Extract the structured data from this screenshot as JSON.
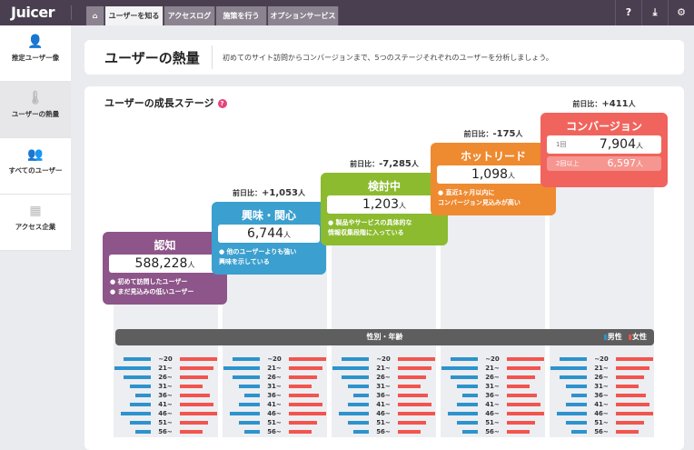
{
  "app": {
    "logo": "Juicer"
  },
  "nav": {
    "tabs": [
      {
        "label": "home-icon",
        "icon": "⌂"
      },
      {
        "label": "ユーザーを知る"
      },
      {
        "label": "アクセスログ"
      },
      {
        "label": "施策を行う"
      },
      {
        "label": "オプションサービス"
      }
    ],
    "active": 1
  },
  "toolbar": {
    "help": "?",
    "download": "⤓",
    "settings": "⚙"
  },
  "sidebar": {
    "items": [
      {
        "label": "推定ユーザー像",
        "icon": "👤"
      },
      {
        "label": "ユーザーの熱量",
        "icon": "🌡"
      },
      {
        "label": "すべてのユーザー",
        "icon": "👥"
      },
      {
        "label": "アクセス企業",
        "icon": "▦"
      }
    ],
    "active": 1
  },
  "header": {
    "title": "ユーザーの熱量",
    "description": "初めてのサイト訪問からコンバージョンまで、5つのステージそれぞれのユーザーを分析しましょう。"
  },
  "main": {
    "title": "ユーザーの成長ステージ",
    "help": "?"
  },
  "stages": [
    {
      "name": "認知",
      "value": "588,228",
      "unit": "人",
      "notes": [
        "● 初めて訪問したユーザー",
        "● まだ見込みの低いユーザー"
      ],
      "color": "#8d5589",
      "diff": null
    },
    {
      "name": "興味・関心",
      "value": "6,744",
      "unit": "人",
      "notes": [
        "● 他のユーザーよりも強い",
        "興味を示している"
      ],
      "color": "#3b9fcf",
      "diff_label": "前日比：",
      "diff": "+1,053",
      "diff_unit": "人"
    },
    {
      "name": "検討中",
      "value": "1,203",
      "unit": "人",
      "notes": [
        "● 製品やサービスの具体的な",
        "情報収集段階に入っている"
      ],
      "color": "#8cbb2f",
      "diff_label": "前日比：",
      "diff": "-7,285",
      "diff_unit": "人"
    },
    {
      "name": "ホットリード",
      "value": "1,098",
      "unit": "人",
      "notes": [
        "● 直近1ヶ月以内に",
        "コンバージョン見込みが高い"
      ],
      "color": "#ee8a30",
      "diff_label": "前日比：",
      "diff": "-175",
      "diff_unit": "人"
    },
    {
      "name": "コンバージョン",
      "color": "#f0645d",
      "diff_label": "前日比：",
      "diff": "+411",
      "diff_unit": "人",
      "once_label": "1回",
      "value": "7,904",
      "unit": "人",
      "multi_label": "2回以上",
      "multi_value": "6,597"
    }
  ],
  "demographics": {
    "title": "性別・年齢",
    "legend": {
      "male": "男性",
      "female": "女性",
      "male_color": "#2d93cc",
      "female_color": "#f2554e"
    },
    "age_groups": [
      "~20",
      "21~",
      "26~",
      "31~",
      "36~",
      "41~",
      "46~",
      "51~",
      "56~"
    ],
    "male_relative": [
      75,
      100,
      75,
      58,
      43,
      58,
      83,
      58,
      43
    ],
    "female_relative": [
      100,
      90,
      76,
      61,
      80,
      90,
      100,
      76,
      61
    ]
  }
}
